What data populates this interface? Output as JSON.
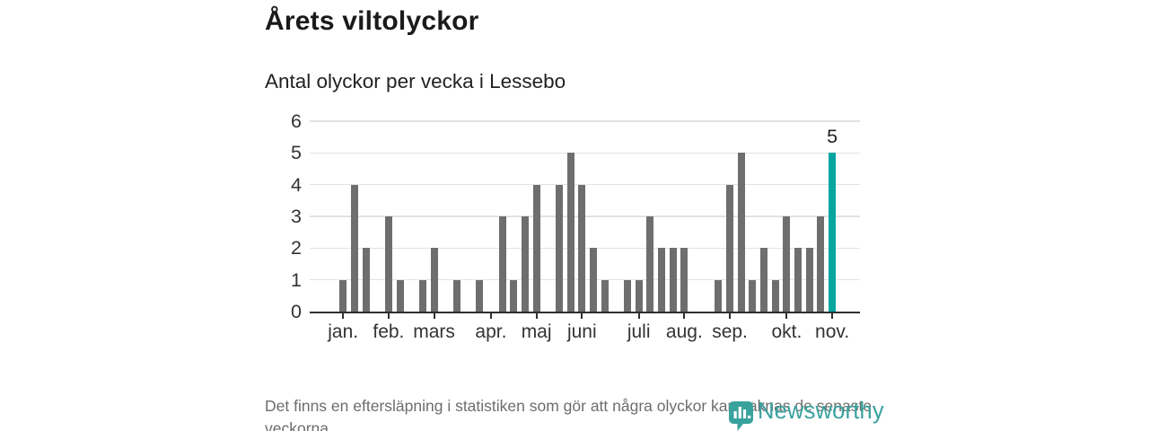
{
  "header": {
    "title": "Årets viltolyckor",
    "subtitle": "Antal olyckor per vecka i Lessebo"
  },
  "chart_data": {
    "type": "bar",
    "title": "Årets viltolyckor",
    "subtitle": "Antal olyckor per vecka i Lessebo",
    "xlabel": "",
    "ylabel": "",
    "x_description": "weeks from first week of January through first week of November",
    "values": [
      1,
      4,
      2,
      0,
      3,
      1,
      0,
      1,
      2,
      0,
      1,
      0,
      1,
      0,
      3,
      1,
      3,
      4,
      0,
      4,
      5,
      4,
      2,
      1,
      0,
      1,
      1,
      3,
      2,
      2,
      2,
      0,
      0,
      1,
      4,
      5,
      1,
      2,
      1,
      3,
      2,
      2,
      3,
      5
    ],
    "month_ticks": [
      {
        "label": "jan.",
        "week": 0
      },
      {
        "label": "feb.",
        "week": 4
      },
      {
        "label": "mars",
        "week": 8
      },
      {
        "label": "apr.",
        "week": 13
      },
      {
        "label": "maj",
        "week": 17
      },
      {
        "label": "juni",
        "week": 21
      },
      {
        "label": "juli",
        "week": 26
      },
      {
        "label": "aug.",
        "week": 30
      },
      {
        "label": "sep.",
        "week": 34
      },
      {
        "label": "okt.",
        "week": 39
      },
      {
        "label": "nov.",
        "week": 43
      }
    ],
    "yticks": [
      "0",
      "1",
      "2",
      "3",
      "4",
      "5",
      "6"
    ],
    "ylim": [
      0,
      6
    ],
    "grid": true,
    "legend": "none",
    "highlight_index": 43,
    "highlight_value_label": "5",
    "colors": {
      "bar": "#6e6e6e",
      "highlight": "#00a5a0",
      "grid": "#e2e2e2",
      "axis": "#2f2f2f",
      "tick_text": "#333333"
    }
  },
  "footer": {
    "note": "Det finns en eftersläpning i statistiken som gör att några olyckor kan saknas de senaste veckorna."
  },
  "branding": {
    "logo_text": "Newsworthy",
    "brand_color": "#3aa29d"
  }
}
